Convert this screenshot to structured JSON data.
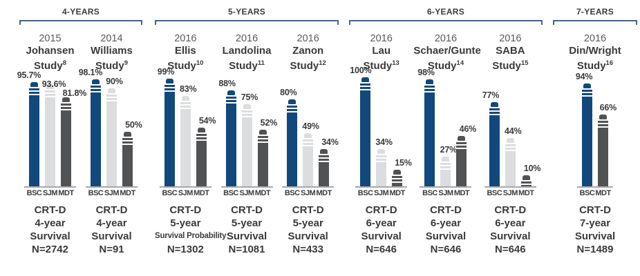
{
  "page": {
    "background": "#FFFFFF"
  },
  "chart_data": {
    "type": "bar",
    "unit": "%",
    "ylim": [
      0,
      100
    ],
    "legend": [
      "BSC",
      "SJM",
      "MDT"
    ],
    "colors": {
      "BSC": "#11497C",
      "SJM": "#DCDDDE",
      "MDT": "#515254",
      "bracket": "#44628C",
      "baseline": "#A7A8AA",
      "text_dark": "#3A3A3C",
      "text_year": "#58595B",
      "stripe": "#FFFFFF"
    },
    "layout_hint": "grouped battery-style bars, value labels above bars, device labels below baseline",
    "groups": [
      {
        "label": "4-YEARS",
        "studies": [
          {
            "year": "2015",
            "name": "Johansen",
            "study_word": "Study",
            "ref": "8",
            "bars": [
              {
                "device": "BSC",
                "value": 95.7,
                "label": "95.7%"
              },
              {
                "device": "SJM",
                "value": 93.6,
                "label": "93.6%"
              },
              {
                "device": "MDT",
                "value": 81.8,
                "label": "81.8%"
              }
            ],
            "caption": [
              "CRT-D",
              "4-year",
              "Survival",
              "N=2742"
            ]
          },
          {
            "year": "2014",
            "name": "Williams",
            "study_word": "Study",
            "ref": "9",
            "bars": [
              {
                "device": "BSC",
                "value": 98.1,
                "label": "98.1%"
              },
              {
                "device": "SJM",
                "value": 90,
                "label": "90%"
              },
              {
                "device": "MDT",
                "value": 50,
                "label": "50%"
              }
            ],
            "caption": [
              "CRT-D",
              "4-year",
              "Survival",
              "N=91"
            ]
          }
        ]
      },
      {
        "label": "5-YEARS",
        "studies": [
          {
            "year": "2016",
            "name": "Ellis",
            "study_word": "Study",
            "ref": "10",
            "bars": [
              {
                "device": "BSC",
                "value": 99,
                "label": "99%"
              },
              {
                "device": "SJM",
                "value": 83,
                "label": "83%"
              },
              {
                "device": "MDT",
                "value": 54,
                "label": "54%"
              }
            ],
            "caption": [
              "CRT-D",
              "5-year",
              "Survival Probability",
              "N=1302"
            ]
          },
          {
            "year": "2016",
            "name": "Landolina",
            "study_word": "Study",
            "ref": "11",
            "bars": [
              {
                "device": "BSC",
                "value": 88,
                "label": "88%"
              },
              {
                "device": "SJM",
                "value": 75,
                "label": "75%"
              },
              {
                "device": "MDT",
                "value": 52,
                "label": "52%"
              }
            ],
            "caption": [
              "CRT-D",
              "5-year",
              "Survival",
              "N=1081"
            ]
          },
          {
            "year": "2016",
            "name": "Zanon",
            "study_word": "Study",
            "ref": "12",
            "bars": [
              {
                "device": "BSC",
                "value": 80,
                "label": "80%"
              },
              {
                "device": "SJM",
                "value": 49,
                "label": "49%"
              },
              {
                "device": "MDT",
                "value": 34,
                "label": "34%"
              }
            ],
            "caption": [
              "CRT-D",
              "5-year",
              "Survival",
              "N=433"
            ]
          }
        ]
      },
      {
        "label": "6-YEARS",
        "studies": [
          {
            "year": "2016",
            "name": "Lau",
            "study_word": "Study",
            "ref": "13",
            "bars": [
              {
                "device": "BSC",
                "value": 100,
                "label": "100%"
              },
              {
                "device": "SJM",
                "value": 34,
                "label": "34%"
              },
              {
                "device": "MDT",
                "value": 15,
                "label": "15%"
              }
            ],
            "caption": [
              "CRT-D",
              "6-year",
              "Survival",
              "N=646"
            ]
          },
          {
            "year": "2016",
            "name": "Schaer/Gunte",
            "study_word": "Study",
            "ref": "14",
            "bars": [
              {
                "device": "BSC",
                "value": 98,
                "label": "98%"
              },
              {
                "device": "SJM",
                "value": 27,
                "label": "27%"
              },
              {
                "device": "MDT",
                "value": 46,
                "label": "46%"
              }
            ],
            "caption": [
              "CRT-D",
              "6-year",
              "Survival",
              "N=646"
            ]
          },
          {
            "year": "2016",
            "name": "SABA",
            "study_word": "Study",
            "ref": "15",
            "bars": [
              {
                "device": "BSC",
                "value": 77,
                "label": "77%"
              },
              {
                "device": "SJM",
                "value": 44,
                "label": "44%"
              },
              {
                "device": "MDT",
                "value": 10,
                "label": "10%"
              }
            ],
            "caption": [
              "CRT-D",
              "6-year",
              "Survival",
              "N=646"
            ]
          }
        ]
      },
      {
        "label": "7-YEARS",
        "studies": [
          {
            "year": "2016",
            "name": "Din/Wright",
            "study_word": "Study",
            "ref": "16",
            "bars": [
              {
                "device": "BSC",
                "value": 94,
                "label": "94%"
              },
              {
                "device": "MDT",
                "value": 66,
                "label": "66%"
              }
            ],
            "caption": [
              "CRT-D",
              "7-year",
              "Survival",
              "N=1489"
            ]
          }
        ]
      }
    ]
  }
}
